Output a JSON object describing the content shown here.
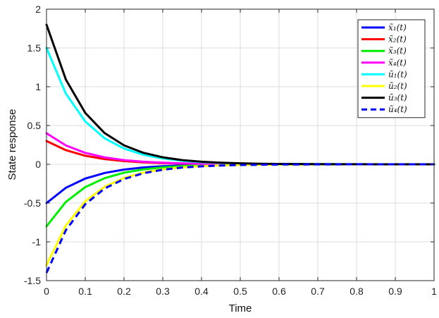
{
  "chart_data": {
    "type": "line",
    "title": "",
    "xlabel": "Time",
    "ylabel": "State response",
    "xlim": [
      0,
      1
    ],
    "ylim": [
      -1.5,
      2
    ],
    "xticks": [
      "0",
      "0.1",
      "0.2",
      "0.3",
      "0.4",
      "0.5",
      "0.6",
      "0.7",
      "0.8",
      "0.9",
      "1"
    ],
    "yticks": [
      "-1.5",
      "-1",
      "-0.5",
      "0",
      "0.5",
      "1",
      "1.5",
      "2"
    ],
    "grid": true,
    "legend_position": "top-right",
    "x": [
      0,
      0.05,
      0.1,
      0.15,
      0.2,
      0.25,
      0.3,
      0.35,
      0.4,
      0.45,
      0.5,
      0.55,
      0.6,
      0.65,
      0.7,
      0.75,
      0.8,
      0.85,
      0.9,
      0.95,
      1.0
    ],
    "series": [
      {
        "name": "x̃₁(t)",
        "color": "#0000ff",
        "dash": false,
        "values": [
          -0.5,
          -0.303,
          -0.184,
          -0.112,
          -0.068,
          -0.041,
          -0.025,
          -0.015,
          -0.009,
          -0.006,
          -0.003,
          -0.002,
          -0.001,
          -0.001,
          0,
          0,
          0,
          0,
          0,
          0,
          0
        ]
      },
      {
        "name": "x̃₂(t)",
        "color": "#ff0000",
        "dash": false,
        "values": [
          0.3,
          0.182,
          0.11,
          0.067,
          0.041,
          0.025,
          0.015,
          0.009,
          0.005,
          0.003,
          0.002,
          0.001,
          0.001,
          0,
          0,
          0,
          0,
          0,
          0,
          0,
          0
        ]
      },
      {
        "name": "x̃₃(t)",
        "color": "#00ee00",
        "dash": false,
        "values": [
          -0.8,
          -0.485,
          -0.294,
          -0.179,
          -0.108,
          -0.066,
          -0.04,
          -0.024,
          -0.015,
          -0.009,
          -0.005,
          -0.003,
          -0.002,
          -0.001,
          -0.001,
          0,
          0,
          0,
          0,
          0,
          0
        ]
      },
      {
        "name": "x̃₄(t)",
        "color": "#ff00ff",
        "dash": false,
        "values": [
          0.4,
          0.243,
          0.147,
          0.089,
          0.054,
          0.033,
          0.02,
          0.012,
          0.007,
          0.004,
          0.003,
          0.002,
          0.001,
          0.001,
          0,
          0,
          0,
          0,
          0,
          0,
          0
        ]
      },
      {
        "name": "ũ₁(t)",
        "color": "#00ffff",
        "dash": false,
        "values": [
          1.5,
          0.91,
          0.552,
          0.335,
          0.203,
          0.123,
          0.075,
          0.045,
          0.027,
          0.017,
          0.01,
          0.006,
          0.004,
          0.002,
          0.001,
          0.001,
          0,
          0,
          0,
          0,
          0
        ]
      },
      {
        "name": "ũ₂(t)",
        "color": "#ffff00",
        "dash": false,
        "values": [
          -1.3,
          -0.789,
          -0.478,
          -0.29,
          -0.176,
          -0.107,
          -0.065,
          -0.039,
          -0.024,
          -0.014,
          -0.009,
          -0.005,
          -0.003,
          -0.002,
          -0.001,
          -0.001,
          0,
          0,
          0,
          0,
          0
        ]
      },
      {
        "name": "ũ₃(t)",
        "color": "#000000",
        "dash": false,
        "values": [
          1.8,
          1.092,
          0.662,
          0.402,
          0.244,
          0.148,
          0.09,
          0.054,
          0.033,
          0.02,
          0.012,
          0.007,
          0.004,
          0.003,
          0.002,
          0.001,
          0.001,
          0,
          0,
          0,
          0
        ]
      },
      {
        "name": "ũ₄(t)",
        "color": "#0000ff",
        "dash": true,
        "values": [
          -1.4,
          -0.849,
          -0.515,
          -0.312,
          -0.19,
          -0.115,
          -0.07,
          -0.042,
          -0.026,
          -0.016,
          -0.009,
          -0.006,
          -0.003,
          -0.002,
          -0.001,
          -0.001,
          0,
          0,
          0,
          0,
          0
        ]
      }
    ]
  }
}
